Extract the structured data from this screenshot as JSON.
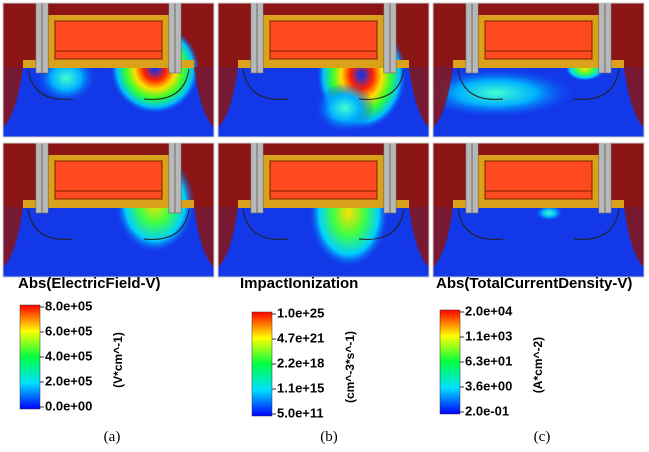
{
  "panels": [
    {
      "title": "Abs(ElectricField-V)",
      "ticks": [
        "8.0e+05",
        "6.0e+05",
        "4.0e+05",
        "2.0e+05",
        "0.0e+00"
      ],
      "unit": "(V*cm^-1)",
      "caption": "(a)"
    },
    {
      "title": "ImpactIonization",
      "ticks": [
        "1.0e+25",
        "4.7e+21",
        "2.2e+18",
        "1.1e+15",
        "5.0e+11"
      ],
      "unit": "(cm^-3*s^-1)",
      "caption": "(b)"
    },
    {
      "title": "Abs(TotalCurrentDensity-V)",
      "ticks": [
        "2.0e+04",
        "1.1e+03",
        "6.3e+01",
        "3.6e+00",
        "2.0e-01"
      ],
      "unit": "(A*cm^-2)",
      "caption": "(c)"
    }
  ]
}
